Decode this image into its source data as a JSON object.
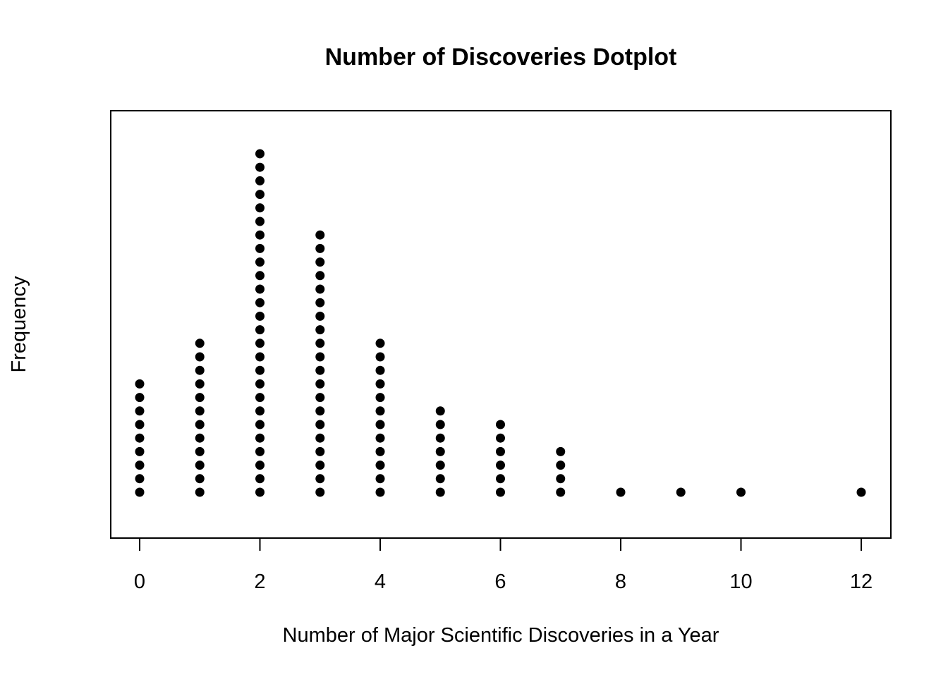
{
  "chart_data": {
    "type": "scatter",
    "subtype": "dotplot",
    "title": "Number of Discoveries Dotplot",
    "xlabel": "Number of Major Scientific Discoveries in a Year",
    "ylabel": "Frequency",
    "x_ticks": [
      0,
      2,
      4,
      6,
      8,
      10,
      12
    ],
    "xlim": [
      -0.25,
      12.25
    ],
    "grid": false,
    "legend": "none",
    "marker_color": "#000000",
    "values": [
      0,
      1,
      2,
      3,
      4,
      5,
      6,
      7,
      8,
      9,
      10,
      12
    ],
    "counts": [
      9,
      12,
      26,
      20,
      12,
      7,
      6,
      4,
      1,
      1,
      1,
      1
    ]
  }
}
